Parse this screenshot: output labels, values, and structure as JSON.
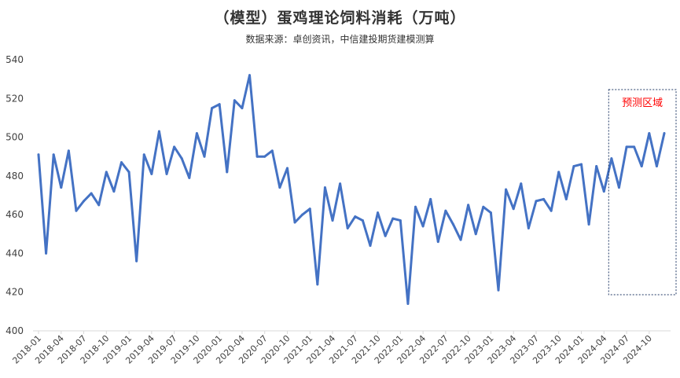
{
  "chart_data": {
    "type": "line",
    "title": "（模型）蛋鸡理论饲料消耗（万吨）",
    "subtitle": "数据来源：卓创资讯，中信建投期货建模测算",
    "ylim": [
      400,
      540
    ],
    "yticks": [
      "400",
      "420",
      "440",
      "460",
      "480",
      "500",
      "520",
      "540"
    ],
    "grid": false,
    "series": [
      {
        "color": "#4472C4",
        "values": [
          491,
          440,
          491,
          474,
          493,
          462,
          467,
          471,
          465,
          482,
          472,
          487,
          482,
          436,
          491,
          481,
          503,
          481,
          495,
          489,
          479,
          502,
          490,
          515,
          517,
          482,
          519,
          515,
          532,
          490,
          490,
          493,
          474,
          484,
          456,
          460,
          463,
          424,
          474,
          457,
          476,
          453,
          459,
          457,
          444,
          461,
          449,
          458,
          457,
          414,
          464,
          454,
          468,
          446,
          462,
          455,
          447,
          465,
          450,
          464,
          461,
          421,
          473,
          463,
          476,
          453,
          467,
          468,
          462,
          482,
          468,
          485,
          486,
          455,
          485,
          472,
          489,
          474,
          495,
          495,
          485,
          502,
          485,
          502
        ]
      }
    ],
    "x_tick_labels": [
      "2018-01",
      "2018-04",
      "2018-07",
      "2018-10",
      "2019-01",
      "2019-04",
      "2019-07",
      "2019-10",
      "2020-01",
      "2020-04",
      "2020-07",
      "2020-10",
      "2021-01",
      "2021-04",
      "2021-07",
      "2021-10",
      "2022-01",
      "2022-04",
      "2022-07",
      "2022-10",
      "2023-01",
      "2023-04",
      "2023-07",
      "2023-10",
      "2024-01",
      "2024-04",
      "2024-07",
      "2024-10"
    ],
    "annotation": {
      "text": "预测区域",
      "color": "#ff0000"
    }
  }
}
